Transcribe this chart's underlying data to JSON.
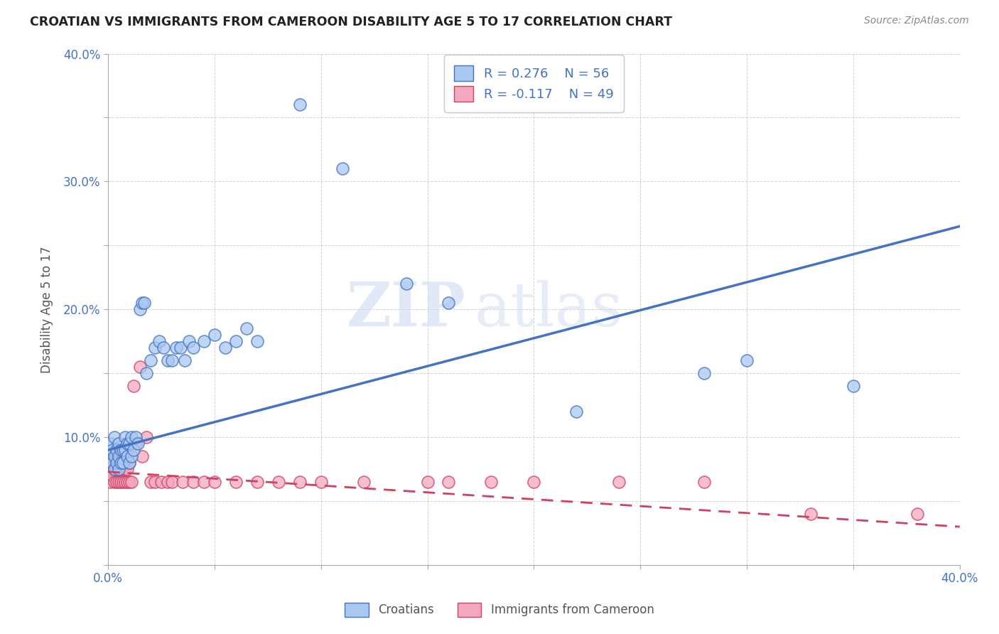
{
  "title": "CROATIAN VS IMMIGRANTS FROM CAMEROON DISABILITY AGE 5 TO 17 CORRELATION CHART",
  "source": "Source: ZipAtlas.com",
  "ylabel": "Disability Age 5 to 17",
  "xlabel": "",
  "xlim": [
    0.0,
    0.4
  ],
  "ylim": [
    0.0,
    0.4
  ],
  "blue_R": 0.276,
  "blue_N": 56,
  "pink_R": -0.117,
  "pink_N": 49,
  "blue_color": "#a8c8f0",
  "pink_color": "#f4a8c0",
  "blue_line_color": "#4472C4",
  "pink_line_color": "#d04060",
  "watermark_zip": "ZIP",
  "watermark_atlas": "atlas",
  "background_color": "#ffffff",
  "grid_color": "#c8c8c8",
  "blue_line_x0": 0.0,
  "blue_line_y0": 0.09,
  "blue_line_x1": 0.4,
  "blue_line_y1": 0.265,
  "pink_line_x0": 0.0,
  "pink_line_y0": 0.073,
  "pink_line_x1": 0.4,
  "pink_line_y1": 0.03,
  "blue_scatter_x": [
    0.001,
    0.001,
    0.002,
    0.002,
    0.003,
    0.003,
    0.003,
    0.004,
    0.004,
    0.005,
    0.005,
    0.005,
    0.006,
    0.006,
    0.007,
    0.007,
    0.008,
    0.008,
    0.009,
    0.009,
    0.01,
    0.01,
    0.011,
    0.011,
    0.012,
    0.013,
    0.014,
    0.015,
    0.016,
    0.017,
    0.018,
    0.02,
    0.022,
    0.024,
    0.026,
    0.028,
    0.03,
    0.032,
    0.034,
    0.036,
    0.038,
    0.04,
    0.045,
    0.05,
    0.055,
    0.06,
    0.065,
    0.07,
    0.09,
    0.11,
    0.14,
    0.16,
    0.22,
    0.28,
    0.3,
    0.35
  ],
  "blue_scatter_y": [
    0.085,
    0.095,
    0.08,
    0.09,
    0.075,
    0.085,
    0.1,
    0.08,
    0.09,
    0.075,
    0.085,
    0.095,
    0.08,
    0.09,
    0.08,
    0.09,
    0.09,
    0.1,
    0.085,
    0.095,
    0.08,
    0.095,
    0.085,
    0.1,
    0.09,
    0.1,
    0.095,
    0.2,
    0.205,
    0.205,
    0.15,
    0.16,
    0.17,
    0.175,
    0.17,
    0.16,
    0.16,
    0.17,
    0.17,
    0.16,
    0.175,
    0.17,
    0.175,
    0.18,
    0.17,
    0.175,
    0.185,
    0.175,
    0.36,
    0.31,
    0.22,
    0.205,
    0.12,
    0.15,
    0.16,
    0.14
  ],
  "pink_scatter_x": [
    0.001,
    0.001,
    0.002,
    0.002,
    0.003,
    0.003,
    0.004,
    0.004,
    0.005,
    0.005,
    0.006,
    0.006,
    0.007,
    0.007,
    0.008,
    0.008,
    0.009,
    0.009,
    0.01,
    0.01,
    0.011,
    0.012,
    0.013,
    0.015,
    0.016,
    0.018,
    0.02,
    0.022,
    0.025,
    0.028,
    0.03,
    0.035,
    0.04,
    0.045,
    0.05,
    0.06,
    0.07,
    0.08,
    0.09,
    0.1,
    0.12,
    0.15,
    0.16,
    0.18,
    0.2,
    0.24,
    0.28,
    0.33,
    0.38
  ],
  "pink_scatter_y": [
    0.065,
    0.075,
    0.07,
    0.08,
    0.065,
    0.075,
    0.065,
    0.08,
    0.065,
    0.075,
    0.065,
    0.075,
    0.065,
    0.08,
    0.065,
    0.075,
    0.065,
    0.075,
    0.065,
    0.08,
    0.065,
    0.14,
    0.095,
    0.155,
    0.085,
    0.1,
    0.065,
    0.065,
    0.065,
    0.065,
    0.065,
    0.065,
    0.065,
    0.065,
    0.065,
    0.065,
    0.065,
    0.065,
    0.065,
    0.065,
    0.065,
    0.065,
    0.065,
    0.065,
    0.065,
    0.065,
    0.065,
    0.04,
    0.04
  ]
}
